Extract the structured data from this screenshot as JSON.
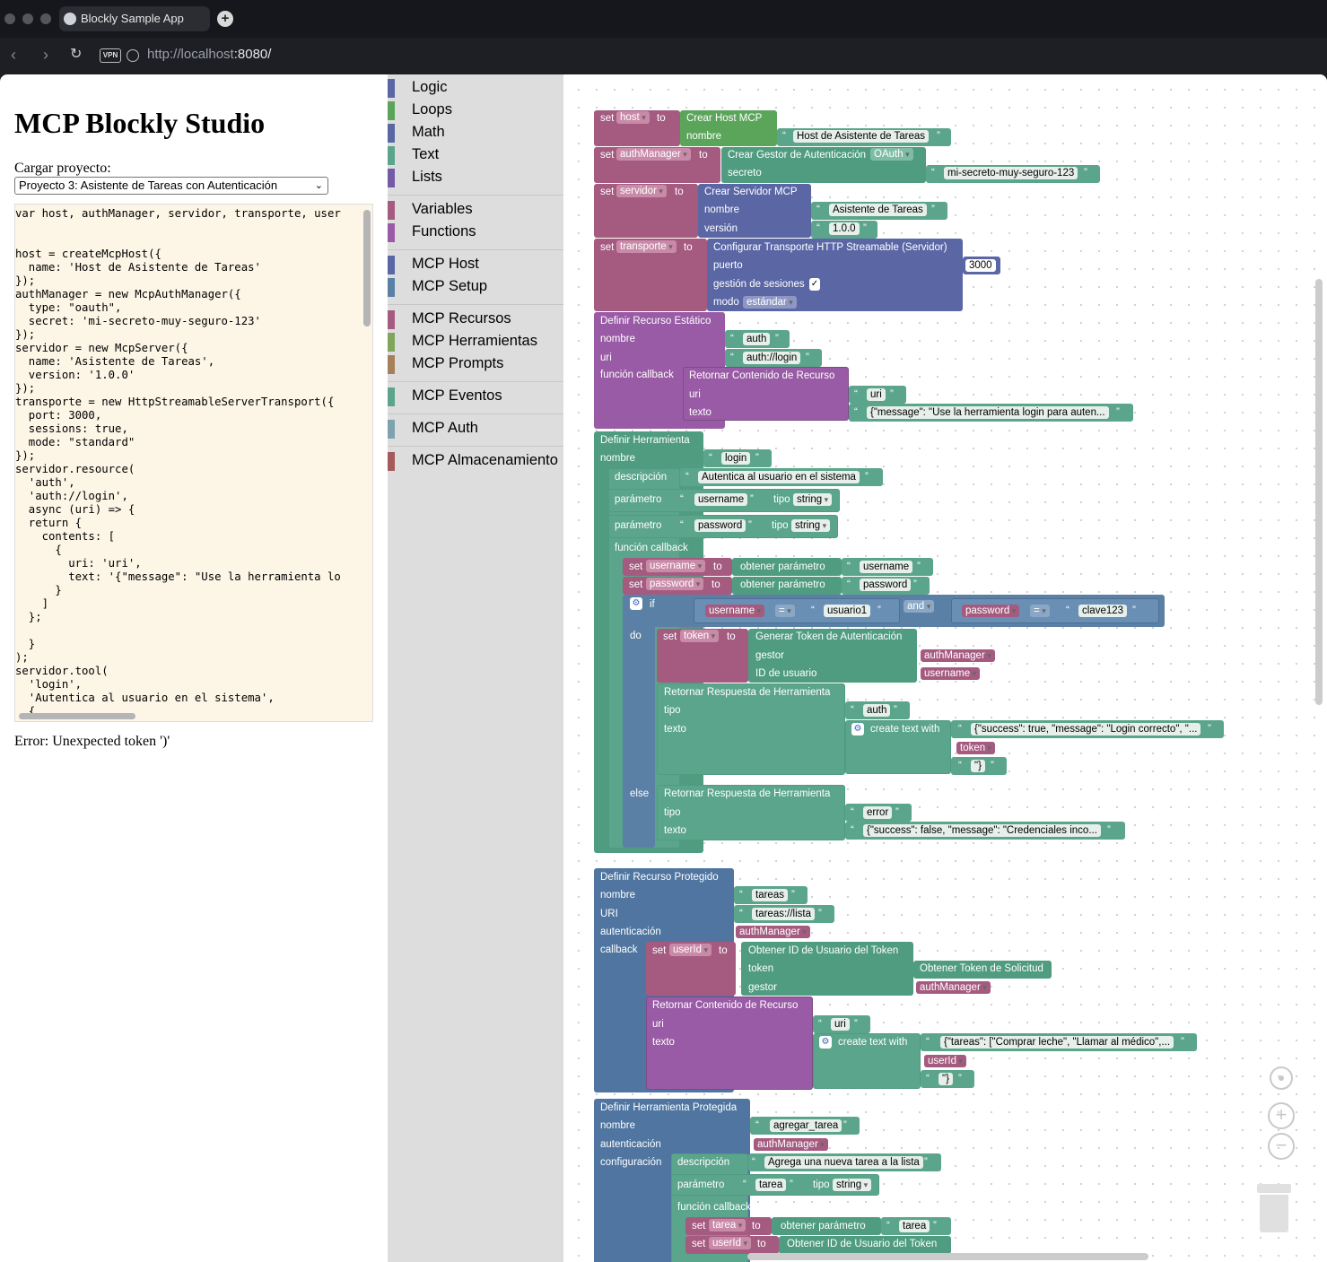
{
  "browser": {
    "tab_title": "Blockly Sample App",
    "new_tab": "+",
    "vpn": "VPN",
    "url_host": "http://localhost",
    "url_port": ":8080/"
  },
  "app": {
    "title": "MCP Blockly Studio",
    "load_label": "Cargar proyecto:",
    "project_selected": "Proyecto 3: Asistente de Tareas con Autenticación",
    "code": "var host, authManager, servidor, transporte, user\n\n\nhost = createMcpHost({\n  name: 'Host de Asistente de Tareas'\n});\nauthManager = new McpAuthManager({\n  type: \"oauth\",\n  secret: 'mi-secreto-muy-seguro-123'\n});\nservidor = new McpServer({\n  name: 'Asistente de Tareas',\n  version: '1.0.0'\n});\ntransporte = new HttpStreamableServerTransport({\n  port: 3000,\n  sessions: true,\n  mode: \"standard\"\n});\nservidor.resource(\n  'auth',\n  'auth://login',\n  async (uri) => {\n  return {\n    contents: [\n      {\n        uri: 'uri',\n        text: '{\"message\": \"Use la herramienta lo\n      }\n    ]\n  };\n\n  }\n);\nservidor.tool(\n  'login',\n  'Autentica al usuario en el sistema',\n  {",
    "error": "Error: Unexpected token ')'"
  },
  "toolbox": {
    "items": [
      {
        "label": "Logic",
        "color": "#5b67a5"
      },
      {
        "label": "Loops",
        "color": "#5ba55b"
      },
      {
        "label": "Math",
        "color": "#5b67a5"
      },
      {
        "label": "Text",
        "color": "#5ba58c"
      },
      {
        "label": "Lists",
        "color": "#745ba5"
      },
      {
        "label": "Variables",
        "color": "#a55b80"
      },
      {
        "label": "Functions",
        "color": "#995ba5"
      },
      {
        "label": "MCP Host",
        "color": "#5b67a5"
      },
      {
        "label": "MCP Setup",
        "color": "#5b80a5"
      },
      {
        "label": "MCP Recursos",
        "color": "#a55b80"
      },
      {
        "label": "MCP Herramientas",
        "color": "#80a55b"
      },
      {
        "label": "MCP Prompts",
        "color": "#a5805b"
      },
      {
        "label": "MCP Eventos",
        "color": "#5ba58c"
      },
      {
        "label": "MCP Auth",
        "color": "#7fa2b0"
      },
      {
        "label": "MCP Almacenamiento",
        "color": "#a55b5b"
      }
    ]
  },
  "colors": {
    "variables": "#a55b80",
    "text": "#5ba58c",
    "host": "#5ba55b",
    "setup": "#5b67a5",
    "resource": "#995ba5",
    "protected": "#4f75a0",
    "logic": "#5b80a5"
  },
  "blocks": {
    "set": "set",
    "to": "to",
    "b1": {
      "var": "host",
      "label": "Crear Host MCP",
      "nombre": "nombre",
      "value": "Host de Asistente de Tareas"
    },
    "b2": {
      "var": "authManager",
      "label": "Crear Gestor de Autenticación",
      "type": "OAuth",
      "secreto": "secreto",
      "value": "mi-secreto-muy-seguro-123"
    },
    "b3": {
      "var": "servidor",
      "label": "Crear Servidor MCP",
      "nombre": "nombre",
      "name": "Asistente de Tareas",
      "version_label": "versión",
      "version": "1.0.0"
    },
    "b4": {
      "var": "transporte",
      "label": "Configurar Transporte HTTP Streamable (Servidor)",
      "puerto": "puerto",
      "port": "3000",
      "sessions": "gestión de sesiones",
      "check": "✓",
      "modo": "modo",
      "mode": "estándar"
    },
    "b5": {
      "label": "Definir Recurso Estático",
      "nombre": "nombre",
      "name": "auth",
      "uri": "uri",
      "uri_val": "auth://login",
      "callback": "función callback",
      "ret": "Retornar Contenido de Recurso",
      "r_uri": "uri",
      "r_uri_val": "uri",
      "texto": "texto",
      "text_val": "{\"message\": \"Use la herramienta login para auten..."
    },
    "b6": {
      "label": "Definir Herramienta",
      "nombre": "nombre",
      "name": "login",
      "desc": "descripción",
      "desc_val": "Autentica al usuario en el sistema",
      "param": "parámetro",
      "p1": "username",
      "tipo": "tipo",
      "type1": "string",
      "p2": "password",
      "type2": "string",
      "callback": "función callback",
      "s1_var": "username",
      "s1_op": "obtener parámetro",
      "s1_val": "username",
      "s2_var": "password",
      "s2_op": "obtener parámetro",
      "s2_val": "password",
      "if": "if",
      "c1_var": "username",
      "eq": "=",
      "c1_val": "usuario1",
      "and": "and",
      "c2_var": "password",
      "c2_val": "clave123",
      "do": "do",
      "tok_var": "token",
      "tok_label": "Generar Token de Autenticación",
      "gestor": "gestor",
      "gestor_val": "authManager",
      "uid": "ID de usuario",
      "uid_val": "username",
      "ret1": "Retornar Respuesta de Herramienta",
      "tipo1": "tipo",
      "tipo1_val": "auth",
      "texto1": "texto",
      "create": "create text with",
      "ct1": "{\"success\": true, \"message\": \"Login correcto\", \"...",
      "ct2": "token",
      "ct3": "\"}",
      "else": "else",
      "ret2": "Retornar Respuesta de Herramienta",
      "tipo2": "tipo",
      "tipo2_val": "error",
      "texto2": "texto",
      "texto2_val": "{\"success\": false, \"message\": \"Credenciales inco..."
    },
    "b7": {
      "label": "Definir Recurso Protegido",
      "nombre": "nombre",
      "name": "tareas",
      "uri": "URI",
      "uri_val": "tareas://lista",
      "auth": "autenticación",
      "auth_val": "authManager",
      "callback": "callback",
      "s_var": "userId",
      "s_label": "Obtener ID de Usuario del Token",
      "token": "token",
      "token_val": "Obtener Token de Solicitud",
      "gestor": "gestor",
      "gestor_val": "authManager",
      "ret": "Retornar Contenido de Recurso",
      "r_uri": "uri",
      "r_uri_val": "uri",
      "texto": "texto",
      "create": "create text with",
      "ct1": "{\"tareas\": [\"Comprar leche\", \"Llamar al médico\",...",
      "ct2": "userId",
      "ct3": "\"}"
    },
    "b8": {
      "label": "Definir Herramienta Protegida",
      "nombre": "nombre",
      "name": "agregar_tarea",
      "auth": "autenticación",
      "auth_val": "authManager",
      "config": "configuración",
      "desc": "descripción",
      "desc_val": "Agrega una nueva tarea a la lista",
      "param": "parámetro",
      "p1": "tarea",
      "tipo": "tipo",
      "type1": "string",
      "callback": "función callback",
      "s1_var": "tarea",
      "s1_op": "obtener parámetro",
      "s1_val": "tarea",
      "s2_var": "userId",
      "s2_op": "Obtener ID de Usuario del Token"
    }
  }
}
